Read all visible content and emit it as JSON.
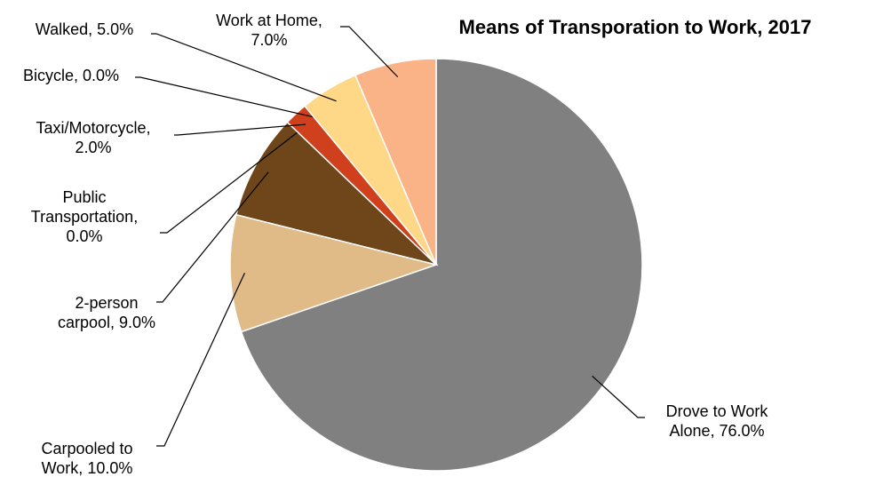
{
  "chart_data": {
    "type": "pie",
    "title": "Means of Transporation to Work, 2017",
    "categories": [
      "Drove to Work Alone",
      "Carpooled to Work",
      "2-person carpool",
      "Public Transportation",
      "Taxi/Motorcycle",
      "Bicycle",
      "Walked",
      "Work at Home"
    ],
    "values": [
      76,
      10,
      9,
      0,
      2,
      0,
      5,
      7
    ],
    "value_labels": [
      "76.0%",
      "10.0%",
      "9.0%",
      "0.0%",
      "2.0%",
      "0.0%",
      "5.0%",
      "7.0%"
    ],
    "label_separator": ", ",
    "colors": [
      "#808080",
      "#e0bb88",
      "#6e4619",
      "#8b5a2b",
      "#d0401c",
      "#f0c060",
      "#fed886",
      "#f9b386"
    ]
  }
}
